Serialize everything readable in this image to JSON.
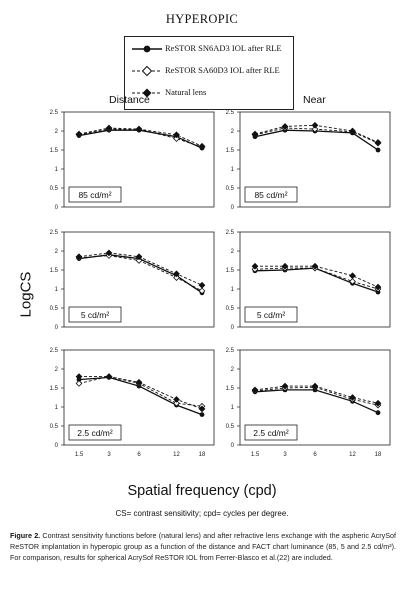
{
  "figure": {
    "title": "HYPEROPIC",
    "legend": [
      {
        "label": "ReSTOR SN6AD3 IOL after RLE",
        "line": "solid",
        "marker": "filled-circle"
      },
      {
        "label": "ReSTOR SA60D3 IOL after RLE",
        "line": "dashed",
        "marker": "open-diamond"
      },
      {
        "label": "Natural lens",
        "line": "dashed",
        "marker": "filled-diamond"
      }
    ],
    "columns": [
      "Distance",
      "Near"
    ],
    "y_axis_label": "LogCS",
    "x_axis_label": "Spatial frequency (cpd)",
    "abbreviations": "CS= contrast sensitivity; cpd= cycles per degree.",
    "caption_label": "Figure 2.",
    "caption_text": " Contrast sensitivity functions before (natural lens) and after refractive lens exchange with the aspheric AcrySof ReSTOR implantation in hyperopic group as a function of the distance and FACT chart luminance (85, 5 and 2.5 cd/m²). For comparison, results for spherical AcrySof ReSTOR IOL from Ferrer-Blasco et al.(22) are included."
  },
  "chart_data": [
    {
      "type": "line",
      "column": "Distance",
      "luminance": "85 cd/m²",
      "x": [
        "1.5",
        "3",
        "6",
        "12",
        "18"
      ],
      "ylim": [
        0,
        2.5
      ],
      "yticks": [
        0,
        0.5,
        1,
        1.5,
        2,
        2.5
      ],
      "series": [
        {
          "name": "ReSTOR SN6AD3 IOL after RLE",
          "values": [
            1.88,
            2.02,
            2.02,
            1.85,
            1.55
          ]
        },
        {
          "name": "ReSTOR SA60D3 IOL after RLE",
          "values": [
            1.9,
            2.05,
            2.05,
            1.8,
            1.58
          ]
        },
        {
          "name": "Natural lens",
          "values": [
            1.92,
            2.08,
            2.05,
            1.9,
            1.6
          ]
        }
      ]
    },
    {
      "type": "line",
      "column": "Near",
      "luminance": "85 cd/m²",
      "x": [
        "1.5",
        "3",
        "6",
        "12",
        "18"
      ],
      "ylim": [
        0,
        2.5
      ],
      "yticks": [
        0,
        0.5,
        1,
        1.5,
        2,
        2.5
      ],
      "series": [
        {
          "name": "ReSTOR SN6AD3 IOL after RLE",
          "values": [
            1.85,
            2.02,
            2.0,
            1.95,
            1.5
          ]
        },
        {
          "name": "ReSTOR SA60D3 IOL after RLE",
          "values": [
            1.9,
            2.08,
            2.05,
            1.98,
            1.68
          ]
        },
        {
          "name": "Natural lens",
          "values": [
            1.92,
            2.12,
            2.15,
            2.0,
            1.7
          ]
        }
      ]
    },
    {
      "type": "line",
      "column": "Distance",
      "luminance": "5 cd/m²",
      "x": [
        "1.5",
        "3",
        "6",
        "12",
        "18"
      ],
      "ylim": [
        0,
        2.5
      ],
      "yticks": [
        0,
        0.5,
        1,
        1.5,
        2,
        2.5
      ],
      "series": [
        {
          "name": "ReSTOR SN6AD3 IOL after RLE",
          "values": [
            1.8,
            1.9,
            1.8,
            1.35,
            0.9
          ]
        },
        {
          "name": "ReSTOR SA60D3 IOL after RLE",
          "values": [
            1.82,
            1.88,
            1.75,
            1.3,
            0.95
          ]
        },
        {
          "name": "Natural lens",
          "values": [
            1.85,
            1.95,
            1.85,
            1.4,
            1.1
          ]
        }
      ]
    },
    {
      "type": "line",
      "column": "Near",
      "luminance": "5 cd/m²",
      "x": [
        "1.5",
        "3",
        "6",
        "12",
        "18"
      ],
      "ylim": [
        0,
        2.5
      ],
      "yticks": [
        0,
        0.5,
        1,
        1.5,
        2,
        2.5
      ],
      "series": [
        {
          "name": "ReSTOR SN6AD3 IOL after RLE",
          "values": [
            1.48,
            1.5,
            1.55,
            1.15,
            0.92
          ]
        },
        {
          "name": "ReSTOR SA60D3 IOL after RLE",
          "values": [
            1.52,
            1.55,
            1.55,
            1.2,
            1.0
          ]
        },
        {
          "name": "Natural lens",
          "values": [
            1.6,
            1.6,
            1.6,
            1.35,
            1.05
          ]
        }
      ]
    },
    {
      "type": "line",
      "column": "Distance",
      "luminance": "2.5 cd/m²",
      "x": [
        "1.5",
        "3",
        "6",
        "12",
        "18"
      ],
      "ylim": [
        0,
        2.5
      ],
      "yticks": [
        0,
        0.5,
        1,
        1.5,
        2,
        2.5
      ],
      "series": [
        {
          "name": "ReSTOR SN6AD3 IOL after RLE",
          "values": [
            1.72,
            1.78,
            1.55,
            1.05,
            0.8
          ]
        },
        {
          "name": "ReSTOR SA60D3 IOL after RLE",
          "values": [
            1.62,
            1.8,
            1.62,
            1.1,
            1.02
          ]
        },
        {
          "name": "Natural lens",
          "values": [
            1.8,
            1.8,
            1.65,
            1.2,
            0.95
          ]
        }
      ]
    },
    {
      "type": "line",
      "column": "Near",
      "luminance": "2.5 cd/m²",
      "x": [
        "1.5",
        "3",
        "6",
        "12",
        "18"
      ],
      "ylim": [
        0,
        2.5
      ],
      "yticks": [
        0,
        0.5,
        1,
        1.5,
        2,
        2.5
      ],
      "series": [
        {
          "name": "ReSTOR SN6AD3 IOL after RLE",
          "values": [
            1.4,
            1.45,
            1.45,
            1.15,
            0.85
          ]
        },
        {
          "name": "ReSTOR SA60D3 IOL after RLE",
          "values": [
            1.42,
            1.5,
            1.52,
            1.2,
            1.05
          ]
        },
        {
          "name": "Natural lens",
          "values": [
            1.45,
            1.55,
            1.55,
            1.25,
            1.1
          ]
        }
      ]
    }
  ]
}
